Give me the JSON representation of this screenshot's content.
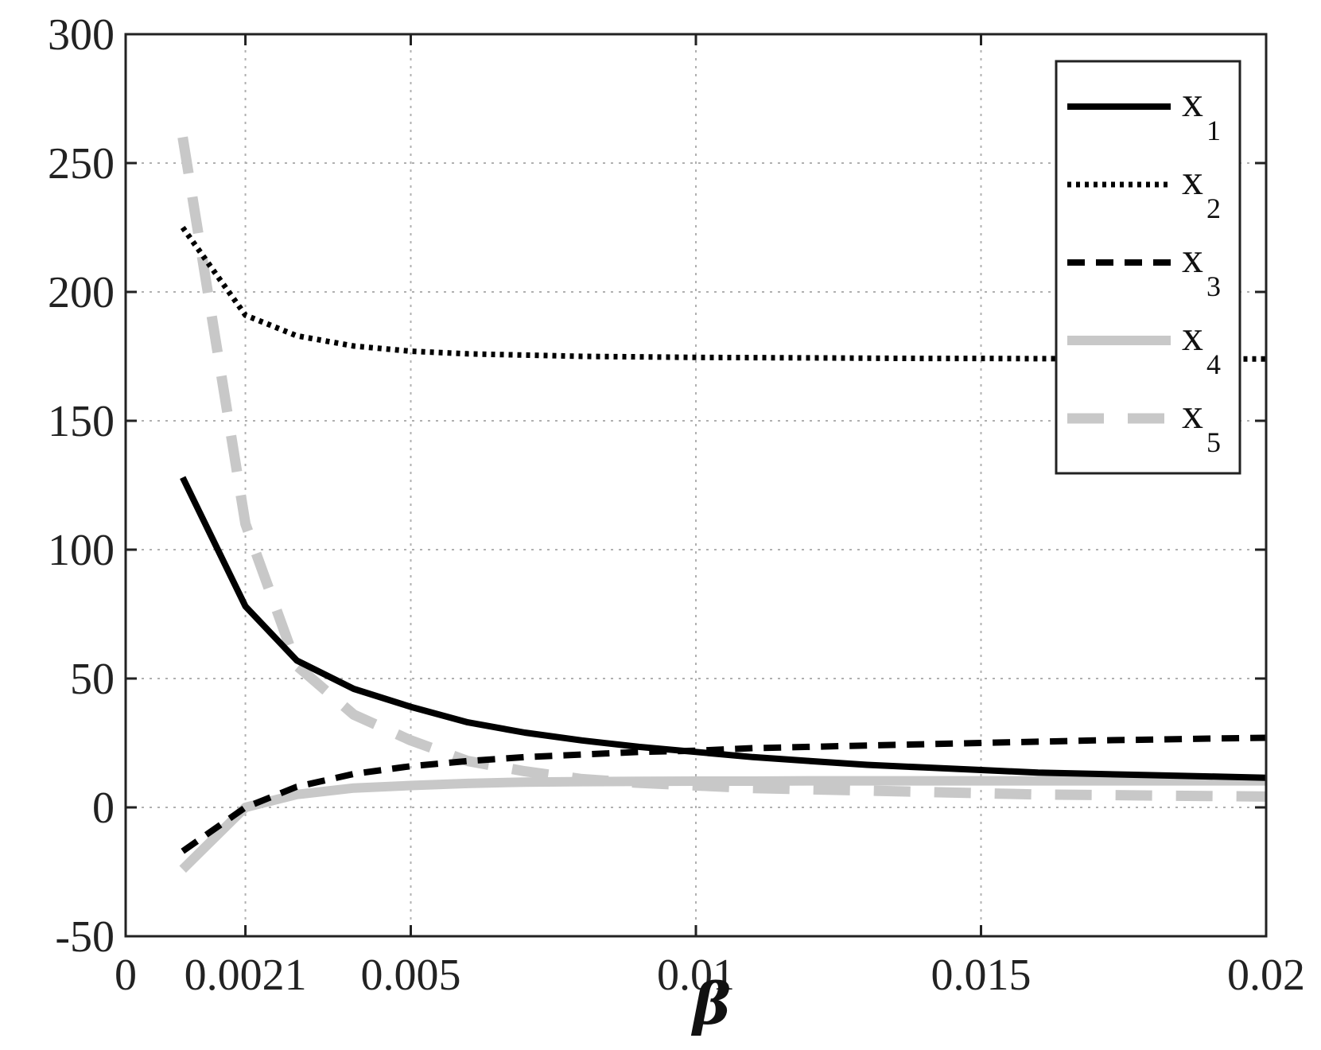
{
  "chart_data": {
    "type": "line",
    "title": "",
    "xlabel": "β",
    "ylabel": "",
    "xlim": [
      0,
      0.02
    ],
    "ylim": [
      -50,
      300
    ],
    "xticks": [
      0,
      0.0021,
      0.005,
      0.01,
      0.015,
      0.02
    ],
    "xtick_labels": [
      "0",
      "0.0021",
      "0.005",
      "0.01",
      "0.015",
      "0.02"
    ],
    "yticks": [
      -50,
      0,
      50,
      100,
      150,
      200,
      250,
      300
    ],
    "ytick_labels": [
      "-50",
      "0",
      "50",
      "100",
      "150",
      "200",
      "250",
      "300"
    ],
    "grid": true,
    "legend_position": "top-right",
    "x": [
      0.001,
      0.0021,
      0.003,
      0.004,
      0.005,
      0.006,
      0.007,
      0.008,
      0.009,
      0.01,
      0.011,
      0.012,
      0.013,
      0.014,
      0.015,
      0.016,
      0.017,
      0.018,
      0.019,
      0.02
    ],
    "series": [
      {
        "name": "x",
        "subscript": "1",
        "color": "#000000",
        "style": "solid",
        "values": [
          128,
          78,
          57,
          46,
          39,
          33,
          29,
          26,
          23.5,
          21.5,
          19.5,
          18,
          16.5,
          15.5,
          14.5,
          13.5,
          13,
          12.5,
          12,
          11.5
        ]
      },
      {
        "name": "x",
        "subscript": "2",
        "color": "#000000",
        "style": "dotted",
        "values": [
          225,
          191,
          183,
          179,
          177,
          176,
          175.5,
          175,
          174.8,
          174.6,
          174.5,
          174.4,
          174.3,
          174.2,
          174.2,
          174.1,
          174.1,
          174,
          174,
          174
        ]
      },
      {
        "name": "x",
        "subscript": "3",
        "color": "#000000",
        "style": "dashed",
        "values": [
          -17,
          0,
          8,
          13,
          16,
          18,
          19.5,
          20.5,
          21.5,
          22,
          23,
          23.5,
          24,
          24.5,
          25,
          25.5,
          26,
          26.3,
          26.7,
          27
        ]
      },
      {
        "name": "x",
        "subscript": "4",
        "color": "#c8c8c8",
        "style": "solid",
        "values": [
          -24,
          0,
          5,
          7.5,
          8.5,
          9.3,
          9.8,
          10,
          10.1,
          10.2,
          10.2,
          10.3,
          10.3,
          10.3,
          10.3,
          10.3,
          10.3,
          10.3,
          10.3,
          10.3
        ]
      },
      {
        "name": "x",
        "subscript": "5",
        "color": "#c8c8c8",
        "style": "longdash",
        "values": [
          260,
          110,
          55,
          36,
          26,
          18,
          14,
          11,
          9.5,
          8.5,
          7.5,
          7,
          6.5,
          6,
          5.5,
          5,
          4.8,
          4.6,
          4.4,
          4.2
        ]
      }
    ]
  }
}
